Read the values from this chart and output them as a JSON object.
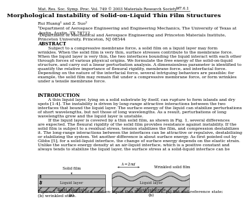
{
  "header_left": "Mat. Res. Soc. Symp. Proc. Vol. 749 © 2003 Materials Research Society",
  "header_right": "W7.6.1",
  "title": "Morphological Instability of Solid-on-Liquid Thin Film Structures",
  "authors": "Rui Huang¹ and Z. Suo²",
  "affil1": "¹Department of Aerospace Engineering and Engineering Mechanics, The University of Texas at\nAustin, Austin, TX 78712",
  "affil2": "²Department of Mechanical and Aerospace Engineering and Princeton Materials Institute,\nPrinceton University, Princeton, NJ 08544",
  "abstract_title": "ABSTRACT",
  "abstract_body": "        Subject to a compressive membrane force, a solid film on a liquid layer may form\nwrinkles. When the solid film is very thin, surface stresses contribute to the membrane force.\nWhen the liquid layer is very thin, the two interfaces bounding the liquid interact with each other\nthrough forces of various physical origins. We formulate the free energy of the solid-on-liquid\nstructure, and carry out a linear perturbation analysis. A dimensionless parameter is identified to\nquantify the relative importance of flexural rigidity, membrane force, and interfacial force.\nDepending on the nature of the interfacial force, several intriguing behaviors are possible; for\nexample, the solid film may remain flat under a compressive membrane force, or form wrinkles\nunder a tensile membrane force.",
  "intro_title": "INTRODUCTION",
  "intro_body": "        A thin liquid layer, lying on a solid substrate by itself, can rupture to form islands and dry\nspots [1-4]. The instability is driven by long-range attractive interactions between the two\ninterfaces that bound the liquid layer. The surface energy of the liquid can stabilize perturbations\nof short wavelengths, but not those of long wavelengths. As a result, perturbations of long\nwavelengths grow and the liquid layer is unstable.\n        If the liquid layer is covered by a thin solid film, as shown in Fig. 1, several differences\nare expected. The flexural rigidity of the solid film provides resistance against instability. If the\nsolid film is subject to a residual stress, tension stabilizes the film, and compression destabilizes\nit. The long-range interactions between the interfaces can be attractive or repulsive, destabilizing\nor stabilizing the system. Yet another difference is about surface energy. As first pointed out by\nGibbs [5], for a solid-liquid interface, the change of surface energy depends on the elastic strain.\nUnlike the surface energy density at an air-liquid interface, which is a positive constant and\nalways tends to stabilize the liquid layer, the surface stress at a solid-liquid interface can be",
  "fig_caption": "Figure 1: Illustrations of a solid-on-liquid thin film structure: (a) flat and reference state;\n(b) wrinkled state.",
  "bg_color": "#ffffff",
  "text_color": "#000000",
  "header_fontsize": 4.0,
  "title_fontsize": 6.0,
  "body_fontsize": 4.3,
  "section_fontsize": 4.8,
  "fig_label_fontsize": 4.3,
  "fig_inner_fontsize": 4.0
}
